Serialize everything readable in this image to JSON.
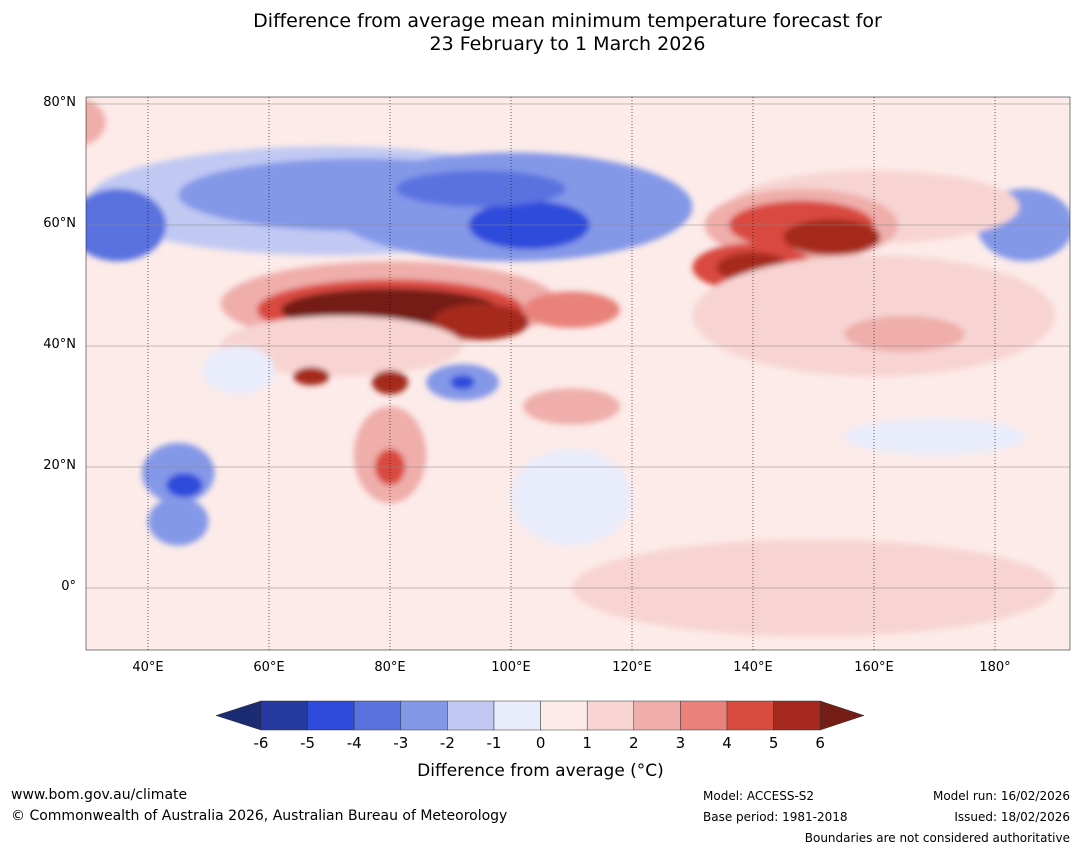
{
  "title_line1": "Difference from average mean minimum temperature forecast for",
  "title_line2": "23 February to 1 March 2026",
  "map": {
    "lon_range": [
      30,
      192
    ],
    "lat_range": [
      -10,
      81
    ],
    "lat_ticks": [
      "80°N",
      "60°N",
      "40°N",
      "20°N",
      "0°"
    ],
    "lat_tick_values": [
      80,
      60,
      40,
      20,
      0
    ],
    "lon_ticks": [
      "40°E",
      "60°E",
      "80°E",
      "100°E",
      "120°E",
      "140°E",
      "160°E",
      "180°"
    ],
    "lon_tick_values": [
      40,
      60,
      80,
      100,
      120,
      140,
      160,
      180
    ]
  },
  "colorbar": {
    "labels": [
      "-6",
      "-5",
      "-4",
      "-3",
      "-2",
      "-1",
      "0",
      "1",
      "2",
      "3",
      "4",
      "5",
      "6"
    ],
    "colors": [
      "#25399f",
      "#2f4bdb",
      "#5a72e0",
      "#8498e8",
      "#c1c9f3",
      "#e9ecfa",
      "#fcebe9",
      "#f7d4d1",
      "#efaeaa",
      "#e8827a",
      "#d94a3f",
      "#a6291f"
    ],
    "under_color": "#1a2a73",
    "over_color": "#741d16",
    "title": "Difference from average (°C)"
  },
  "footer": {
    "website": "www.bom.gov.au/climate",
    "copyright": "© Commonwealth of Australia 2026, Australian Bureau of Meteorology",
    "model": "Model: ACCESS-S2",
    "base_period": "Base period: 1981-2018",
    "model_run": "Model run: 16/02/2026",
    "issued": "Issued: 18/02/2026",
    "disclaimer": "Boundaries are not considered authoritative"
  }
}
